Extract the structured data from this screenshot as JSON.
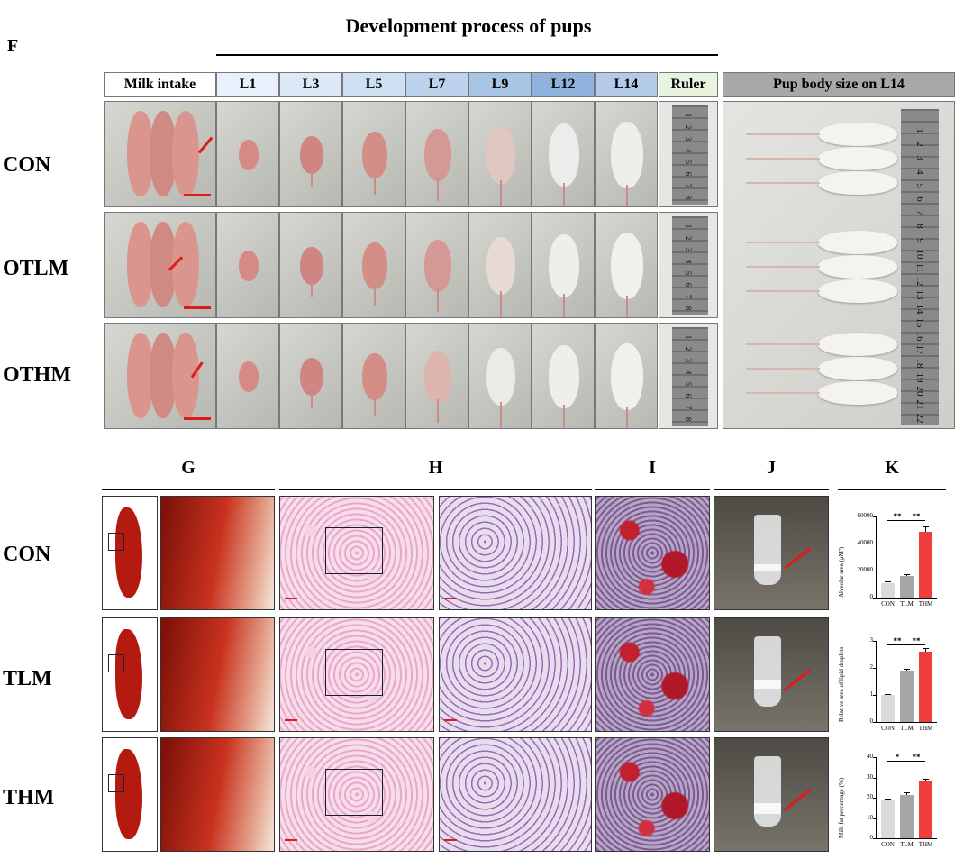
{
  "top_title": "Development process of pups",
  "panel_F": "F",
  "headers": {
    "milk_intake": "Milk intake",
    "days": [
      "L1",
      "L3",
      "L5",
      "L7",
      "L9",
      "L12",
      "L14"
    ],
    "ruler": "Ruler",
    "body_size": "Pup body size on L14"
  },
  "row_labels_top": [
    "CON",
    "OTLM",
    "OTHM"
  ],
  "ruler_ticks": [
    "1",
    "2",
    "3",
    "4",
    "5",
    "6",
    "7",
    "8"
  ],
  "big_ruler_ticks": [
    "1",
    "2",
    "3",
    "4",
    "5",
    "6",
    "7",
    "8",
    "9",
    "10",
    "11",
    "12",
    "13",
    "14",
    "15",
    "16",
    "17",
    "18",
    "19",
    "20",
    "21",
    "22"
  ],
  "bottom_panels": [
    "G",
    "H",
    "I",
    "J",
    "K"
  ],
  "row_labels_bottom": [
    "CON",
    "TLM",
    "THM"
  ],
  "colors": {
    "red": "#e01a1a",
    "light_gray": "#d9d9d9",
    "mid_gray": "#a6a6a6",
    "bar_red": "#f03c3c"
  },
  "chart_data": [
    {
      "type": "bar",
      "categories": [
        "CON",
        "TLM",
        "THM"
      ],
      "values": [
        11000,
        16000,
        49000
      ],
      "errors": [
        800,
        1200,
        4000
      ],
      "ylabel": "Alveolar area (μM²)",
      "ylim": [
        0,
        60000
      ],
      "yticks": [
        "0",
        "20000",
        "40000",
        "60000"
      ],
      "significance": [
        "**",
        "**"
      ]
    },
    {
      "type": "bar",
      "categories": [
        "CON",
        "TLM",
        "THM"
      ],
      "values": [
        1.0,
        1.9,
        2.6
      ],
      "errors": [
        0.04,
        0.08,
        0.15
      ],
      "ylabel": "Relative area of lipid droplets",
      "ylim": [
        0,
        3
      ],
      "yticks": [
        "0",
        "1",
        "2",
        "3"
      ],
      "significance": [
        "**",
        "**"
      ]
    },
    {
      "type": "bar",
      "categories": [
        "CON",
        "TLM",
        "THM"
      ],
      "values": [
        19,
        21.5,
        28.5
      ],
      "errors": [
        0.5,
        1.0,
        1.0
      ],
      "ylabel": "Milk fat percentage (%)",
      "ylim": [
        0,
        40
      ],
      "yticks": [
        "0",
        "10",
        "20",
        "30",
        "40"
      ],
      "significance": [
        "*",
        "**"
      ]
    }
  ]
}
